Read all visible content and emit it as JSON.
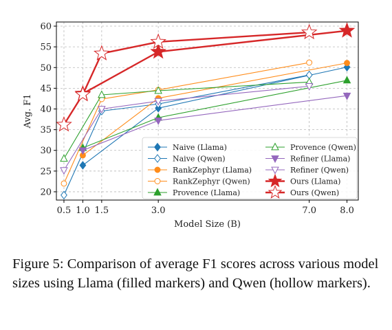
{
  "chart_data": {
    "type": "line",
    "xlabel": "Model Size (B)",
    "ylabel": "Avg. F1",
    "xlim": [
      0.3,
      8.3
    ],
    "ylim": [
      18,
      61
    ],
    "x_ticks": [
      0.5,
      1.0,
      1.5,
      3.0,
      7.0,
      8.0
    ],
    "x_tick_labels": [
      "0.5",
      "1.0",
      "1.5",
      "3.0",
      "7.0",
      "8.0"
    ],
    "y_ticks": [
      20,
      25,
      30,
      35,
      40,
      45,
      50,
      55,
      60
    ],
    "grid": true,
    "legend_position": "lower-right",
    "series": [
      {
        "name": "Naive (Llama)",
        "color": "#1f77b4",
        "marker": "diamond",
        "filled": true,
        "x": [
          1.0,
          3.0,
          8.0
        ],
        "y": [
          26.4,
          40.2,
          50.1
        ]
      },
      {
        "name": "Naive (Qwen)",
        "color": "#1f77b4",
        "marker": "diamond",
        "filled": false,
        "x": [
          0.5,
          1.5,
          3.0,
          7.0
        ],
        "y": [
          19.2,
          39.5,
          41.2,
          48.2
        ]
      },
      {
        "name": "RankZephyr (Llama)",
        "color": "#ff8c1a",
        "marker": "circle",
        "filled": true,
        "x": [
          1.0,
          3.0,
          8.0
        ],
        "y": [
          28.8,
          42.6,
          51.1
        ]
      },
      {
        "name": "RankZephyr (Qwen)",
        "color": "#ff8c1a",
        "marker": "circle",
        "filled": false,
        "x": [
          0.5,
          1.5,
          3.0,
          7.0
        ],
        "y": [
          22.0,
          42.4,
          44.6,
          51.2
        ]
      },
      {
        "name": "Provence (Llama)",
        "color": "#2ca02c",
        "marker": "triangle-up",
        "filled": true,
        "x": [
          1.0,
          3.0,
          8.0
        ],
        "y": [
          30.6,
          37.9,
          46.9
        ]
      },
      {
        "name": "Provence (Qwen)",
        "color": "#2ca02c",
        "marker": "triangle-up",
        "filled": false,
        "x": [
          0.5,
          1.5,
          3.0,
          7.0
        ],
        "y": [
          28.0,
          43.4,
          44.4,
          46.5
        ]
      },
      {
        "name": "Refiner (Llama)",
        "color": "#9467bd",
        "marker": "triangle-down",
        "filled": true,
        "x": [
          1.0,
          3.0,
          8.0
        ],
        "y": [
          30.0,
          37.2,
          43.2
        ]
      },
      {
        "name": "Refiner (Qwen)",
        "color": "#9467bd",
        "marker": "triangle-down",
        "filled": false,
        "x": [
          0.5,
          1.5,
          3.0,
          7.0
        ],
        "y": [
          25.2,
          40.0,
          41.9,
          45.5
        ]
      },
      {
        "name": "Ours (Llama)",
        "color": "#d62728",
        "marker": "star",
        "filled": true,
        "x": [
          1.0,
          3.0,
          8.0
        ],
        "y": [
          43.7,
          53.8,
          58.9
        ]
      },
      {
        "name": "Ours (Qwen)",
        "color": "#d62728",
        "marker": "star",
        "filled": false,
        "x": [
          0.5,
          1.0,
          1.5,
          3.0,
          7.0
        ],
        "y": [
          36.2,
          43.5,
          53.4,
          56.2,
          58.5
        ]
      }
    ]
  },
  "caption": "Figure 5: Comparison of average F1 scores across various model sizes using Llama (filled markers) and Qwen (hollow markers)."
}
